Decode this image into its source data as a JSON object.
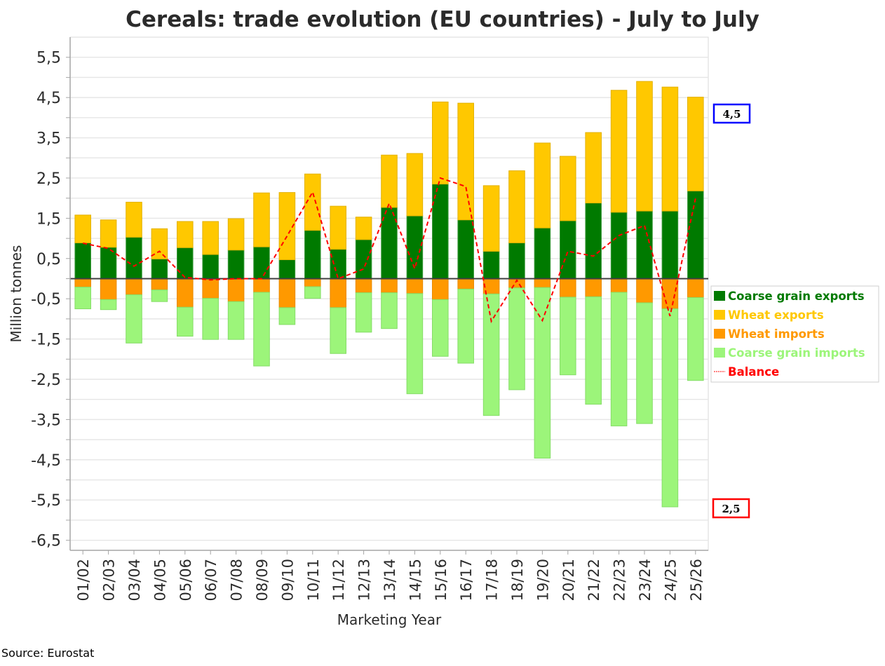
{
  "chart_data": {
    "type": "bar",
    "stacked": true,
    "title": "Cereals: trade evolution (EU countries) - July to July",
    "xlabel": "Marketing Year",
    "ylabel": "Million tonnes",
    "ylim": [
      -6.75,
      6.0
    ],
    "yticks": [
      -6.5,
      -5.5,
      -4.5,
      -3.5,
      -2.5,
      -1.5,
      -0.5,
      0.5,
      1.5,
      2.5,
      3.5,
      4.5,
      5.5
    ],
    "ytick_labels": [
      "-6,5",
      "-5,5",
      "-4,5",
      "-3,5",
      "-2,5",
      "-1,5",
      "-0,5",
      "0,5",
      "1,5",
      "2,5",
      "3,5",
      "4,5",
      "5,5"
    ],
    "grid": true,
    "legend_position": "right",
    "categories": [
      "01/02",
      "02/03",
      "03/04",
      "04/05",
      "05/06",
      "06/07",
      "07/08",
      "08/09",
      "09/10",
      "10/11",
      "11/12",
      "12/13",
      "13/14",
      "14/15",
      "15/16",
      "16/17",
      "17/18",
      "18/19",
      "19/20",
      "20/21",
      "21/22",
      "22/23",
      "23/24",
      "24/25",
      "25/26"
    ],
    "series": [
      {
        "name": "Coarse grain exports",
        "kind": "bar",
        "color": "#007a00",
        "values": [
          0.89,
          0.78,
          1.03,
          0.49,
          0.77,
          0.6,
          0.71,
          0.79,
          0.47,
          1.2,
          0.73,
          0.97,
          1.77,
          1.56,
          2.35,
          1.46,
          0.68,
          0.89,
          1.26,
          1.44,
          1.88,
          1.65,
          1.68,
          1.68,
          2.18
        ]
      },
      {
        "name": "Wheat exports",
        "kind": "bar",
        "color": "#ffc800",
        "values": [
          0.69,
          0.68,
          0.87,
          0.75,
          0.65,
          0.82,
          0.78,
          1.34,
          1.67,
          1.4,
          1.07,
          0.56,
          1.3,
          1.55,
          2.04,
          2.9,
          1.63,
          1.79,
          2.11,
          1.6,
          1.75,
          3.03,
          3.22,
          3.08,
          2.33
        ]
      },
      {
        "name": "Wheat imports",
        "kind": "bar",
        "color": "#ff9900",
        "values": [
          -0.21,
          -0.52,
          -0.4,
          -0.28,
          -0.71,
          -0.49,
          -0.57,
          -0.34,
          -0.72,
          -0.2,
          -0.72,
          -0.35,
          -0.35,
          -0.37,
          -0.52,
          -0.26,
          -0.38,
          -0.23,
          -0.22,
          -0.46,
          -0.45,
          -0.34,
          -0.6,
          -0.75,
          -0.47
        ]
      },
      {
        "name": "Coarse grain imports",
        "kind": "bar",
        "color": "#9cf57a",
        "values": [
          -0.54,
          -0.25,
          -1.2,
          -0.29,
          -0.72,
          -1.02,
          -0.94,
          -1.83,
          -0.42,
          -0.29,
          -1.14,
          -0.98,
          -0.89,
          -2.49,
          -1.41,
          -1.84,
          -3.02,
          -2.53,
          -4.24,
          -1.93,
          -2.67,
          -3.32,
          -3.0,
          -4.92,
          -2.06
        ]
      },
      {
        "name": "Balance",
        "kind": "line",
        "style": "dashed",
        "color": "#ff0000",
        "values": [
          0.88,
          0.75,
          0.31,
          0.68,
          0.03,
          -0.03,
          0.0,
          0.0,
          1.06,
          2.15,
          0.0,
          0.24,
          1.87,
          0.25,
          2.5,
          2.29,
          -1.06,
          -0.04,
          -1.04,
          0.68,
          0.56,
          1.07,
          1.32,
          -0.93,
          1.99
        ]
      }
    ],
    "annotations": [
      {
        "label": "4,5",
        "border_color": "#0000ff",
        "position": "right-upper"
      },
      {
        "label": "2,5",
        "border_color": "#ff0000",
        "position": "right-lower"
      }
    ]
  },
  "source": "Source: Eurostat"
}
